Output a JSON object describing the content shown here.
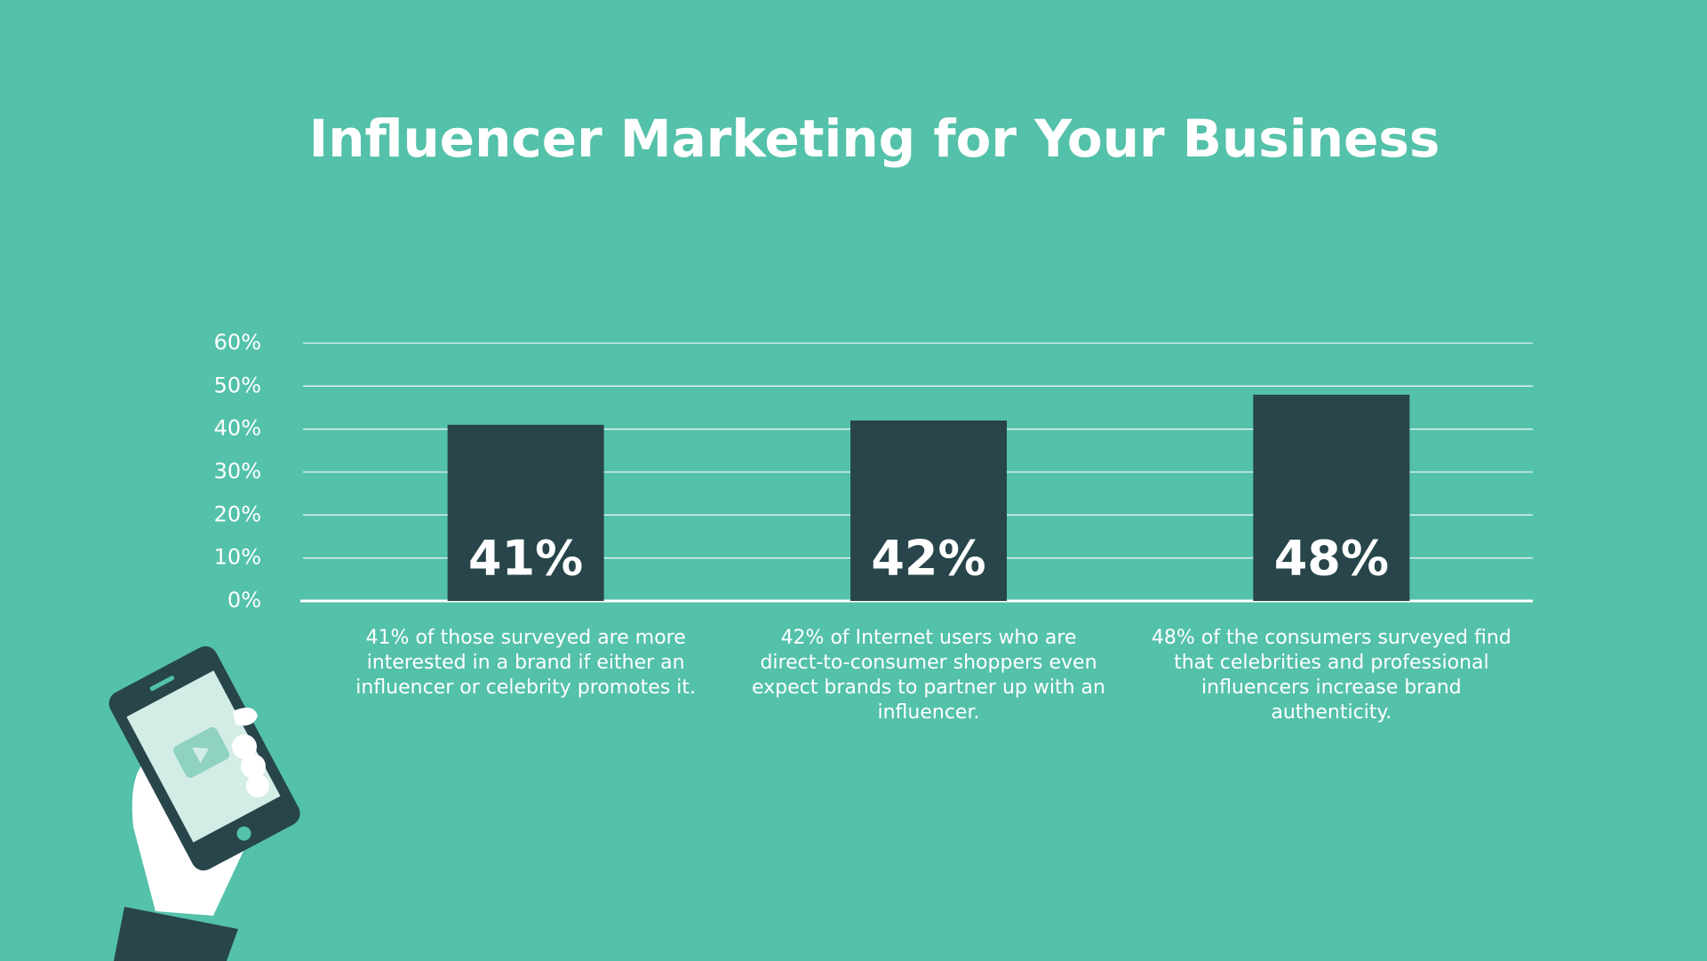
{
  "chart_data": {
    "type": "bar",
    "title": "Influencer Marketing for Your Business",
    "categories": [
      "41% of those surveyed are more interested in a brand if either an influencer or celebrity promotes it.",
      "42% of Internet users who are direct-to-consumer shoppers even expect brands to partner up with an influencer.",
      "48% of the consumers surveyed find that celebrities and professional influencers increase brand authenticity."
    ],
    "values": [
      41,
      42,
      48
    ],
    "value_labels": [
      "41%",
      "42%",
      "48%"
    ],
    "color": "#27454a",
    "ylim": [
      0,
      60
    ],
    "yticks": [
      {
        "value": 0,
        "label": "0%"
      },
      {
        "value": 10,
        "label": "10%"
      },
      {
        "value": 20,
        "label": "20%"
      },
      {
        "value": 30,
        "label": "30%"
      },
      {
        "value": 40,
        "label": "40%"
      },
      {
        "value": 50,
        "label": "50%"
      },
      {
        "value": 60,
        "label": "60%"
      }
    ],
    "grid": true
  }
}
